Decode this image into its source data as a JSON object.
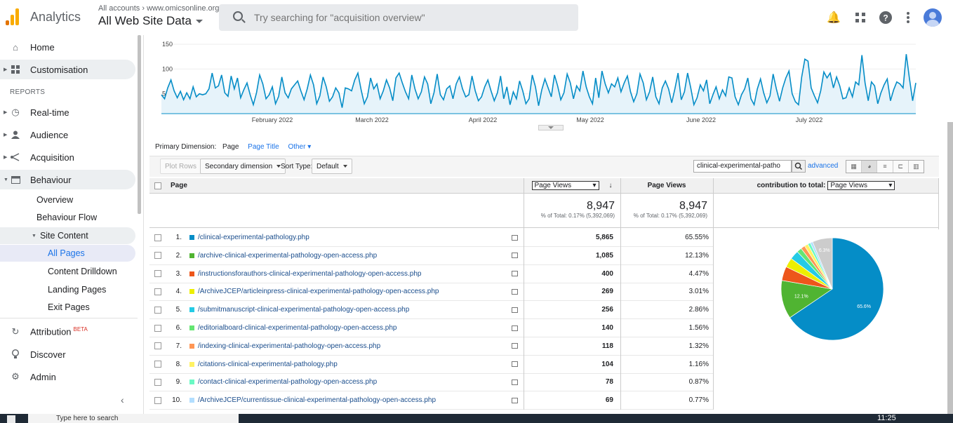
{
  "app": {
    "title": "Analytics",
    "account_path": "All accounts › www.omicsonline.org",
    "view": "All Web Site Data"
  },
  "search": {
    "placeholder": "Try searching for \"acquisition overview\""
  },
  "sidebar": {
    "items": [
      {
        "label": "Home"
      },
      {
        "label": "Customisation"
      },
      {
        "label": "Real-time"
      },
      {
        "label": "Audience"
      },
      {
        "label": "Acquisition"
      },
      {
        "label": "Behaviour"
      }
    ],
    "reports_label": "REPORTS",
    "behaviour_sub": [
      "Overview",
      "Behaviour Flow",
      "Site Content"
    ],
    "site_content_sub": [
      "All Pages",
      "Content Drilldown",
      "Landing Pages",
      "Exit Pages"
    ],
    "bottom": [
      {
        "label": "Attribution",
        "badge": "BETA"
      },
      {
        "label": "Discover"
      },
      {
        "label": "Admin"
      }
    ]
  },
  "chart_data": {
    "type": "area",
    "y_ticks": [
      "150",
      "100",
      "50"
    ],
    "ylim": [
      10,
      160
    ],
    "x_labels": [
      "February 2022",
      "March 2022",
      "April 2022",
      "May 2022",
      "June 2022",
      "July 2022"
    ],
    "values": [
      48,
      40,
      62,
      78,
      56,
      42,
      55,
      38,
      52,
      40,
      64,
      44,
      50,
      48,
      50,
      60,
      92,
      62,
      66,
      88,
      52,
      45,
      86,
      60,
      82,
      42,
      58,
      72,
      48,
      28,
      52,
      88,
      70,
      40,
      48,
      64,
      30,
      45,
      84,
      52,
      42,
      60,
      68,
      76,
      56,
      38,
      60,
      88,
      68,
      30,
      46,
      84,
      64,
      35,
      44,
      62,
      52,
      22,
      62,
      60,
      56,
      78,
      92,
      58,
      30,
      44,
      82,
      60,
      70,
      40,
      56,
      78,
      62,
      36,
      82,
      92,
      72,
      54,
      40,
      88,
      60,
      40,
      54,
      84,
      70,
      30,
      52,
      90,
      48,
      38,
      60,
      66,
      40,
      70,
      84,
      60,
      44,
      48,
      86,
      56,
      36,
      44,
      64,
      78,
      56,
      36,
      52,
      86,
      40,
      64,
      28,
      54,
      40,
      76,
      56,
      30,
      40,
      88,
      64,
      26,
      58,
      80,
      62,
      44,
      88,
      66,
      38,
      52,
      90,
      72,
      40,
      66,
      56,
      96,
      64,
      44,
      30,
      82,
      42,
      96,
      70,
      52,
      70,
      64,
      82,
      54,
      72,
      86,
      54,
      34,
      50,
      90,
      72,
      38,
      54,
      84,
      44,
      30,
      62,
      76,
      60,
      32,
      60,
      92,
      38,
      54,
      92,
      62,
      28,
      42,
      68,
      56,
      78,
      30,
      48,
      64,
      40,
      58,
      46,
      84,
      82,
      44,
      28,
      48,
      60,
      82,
      40,
      28,
      60,
      80,
      52,
      32,
      46,
      90,
      60,
      35,
      62,
      82,
      96,
      50,
      34,
      28,
      84,
      120,
      116,
      62,
      46,
      32,
      56,
      94,
      82,
      92,
      62,
      84,
      66,
      40,
      42,
      62,
      44,
      74,
      68,
      128,
      72,
      36,
      74,
      66,
      30,
      52,
      68,
      80,
      36,
      58,
      74,
      70,
      62,
      130,
      80,
      36,
      72
    ]
  },
  "primary_dimension": {
    "label": "Primary Dimension:",
    "current": "Page",
    "alt": "Page Title",
    "other": "Other"
  },
  "controls": {
    "plot_rows": "Plot Rows",
    "secondary": "Secondary dimension",
    "sort_label": "Sort Type:",
    "sort_value": "Default",
    "filter_value": "clinical-experimental-patho",
    "advanced": "advanced"
  },
  "table": {
    "col_page": "Page",
    "col_metric_select": "Page Views",
    "col_metric": "Page Views",
    "col_contrib_label": "contribution to total:",
    "col_contrib_select": "Page Views",
    "total_value": "8,947",
    "total_pct": "% of Total: 0.17% (5,392,069)",
    "rows": [
      {
        "n": "1.",
        "page": "/clinical-experimental-pathology.php",
        "pv": "5,865",
        "pct": "65.55%",
        "color": "#058dc7"
      },
      {
        "n": "2.",
        "page": "/archive-clinical-experimental-pathology-open-access.php",
        "pv": "1,085",
        "pct": "12.13%",
        "color": "#50b432"
      },
      {
        "n": "3.",
        "page": "/instructionsforauthors-clinical-experimental-pathology-open-access.php",
        "pv": "400",
        "pct": "4.47%",
        "color": "#ed561b"
      },
      {
        "n": "4.",
        "page": "/ArchiveJCEP/articleinpress-clinical-experimental-pathology-open-access.php",
        "pv": "269",
        "pct": "3.01%",
        "color": "#edef00"
      },
      {
        "n": "5.",
        "page": "/submitmanuscript-clinical-experimental-pathology-open-access.php",
        "pv": "256",
        "pct": "2.86%",
        "color": "#24cbe5"
      },
      {
        "n": "6.",
        "page": "/editorialboard-clinical-experimental-pathology-open-access.php",
        "pv": "140",
        "pct": "1.56%",
        "color": "#64e572"
      },
      {
        "n": "7.",
        "page": "/indexing-clinical-experimental-pathology-open-access.php",
        "pv": "118",
        "pct": "1.32%",
        "color": "#ff9655"
      },
      {
        "n": "8.",
        "page": "/citations-clinical-experimental-pathology.php",
        "pv": "104",
        "pct": "1.16%",
        "color": "#fff263"
      },
      {
        "n": "9.",
        "page": "/contact-clinical-experimental-pathology-open-access.php",
        "pv": "78",
        "pct": "0.87%",
        "color": "#6af9c4"
      },
      {
        "n": "10.",
        "page": "/ArchiveJCEP/currentissue-clinical-experimental-pathology-open-access.php",
        "pv": "69",
        "pct": "0.77%",
        "color": "#b2deff"
      }
    ]
  },
  "pie": {
    "slices": [
      65.55,
      12.13,
      4.47,
      3.01,
      2.86,
      1.56,
      1.32,
      1.16,
      0.87,
      0.77,
      6.3
    ],
    "other_color": "#cccccc",
    "labels": [
      "65.6%",
      "12.1%",
      "6.3%"
    ]
  },
  "taskbar": {
    "search": "Type here to search",
    "clock": "11:25"
  }
}
